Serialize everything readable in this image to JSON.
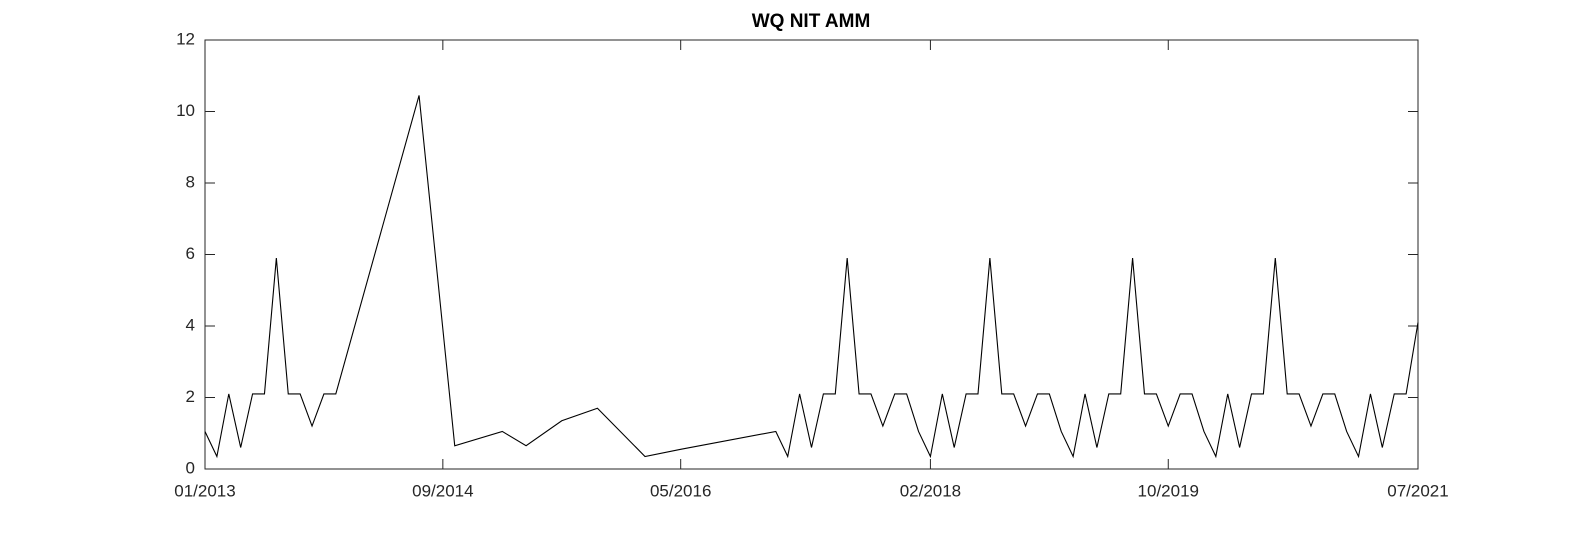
{
  "chart_data": {
    "type": "line",
    "title": "WQ NIT AMM",
    "x": [
      "01/2013",
      "02/2013",
      "03/2013",
      "04/2013",
      "05/2013",
      "06/2013",
      "07/2013",
      "08/2013",
      "09/2013",
      "10/2013",
      "11/2013",
      "12/2013",
      "07/2014",
      "10/2014",
      "02/2015",
      "04/2015",
      "07/2015",
      "10/2015",
      "02/2016",
      "05/2016",
      "01/2017",
      "02/2017",
      "03/2017",
      "04/2017",
      "05/2017",
      "06/2017",
      "07/2017",
      "08/2017",
      "09/2017",
      "10/2017",
      "11/2017",
      "12/2017",
      "01/2018",
      "02/2018",
      "03/2018",
      "04/2018",
      "05/2018",
      "06/2018",
      "07/2018",
      "08/2018",
      "09/2018",
      "10/2018",
      "11/2018",
      "12/2018",
      "01/2019",
      "02/2019",
      "03/2019",
      "04/2019",
      "05/2019",
      "06/2019",
      "07/2019",
      "08/2019",
      "09/2019",
      "10/2019",
      "11/2019",
      "12/2019",
      "01/2020",
      "02/2020",
      "03/2020",
      "04/2020",
      "05/2020",
      "06/2020",
      "07/2020",
      "08/2020",
      "09/2020",
      "10/2020",
      "11/2020",
      "12/2020",
      "01/2021",
      "02/2021",
      "03/2021",
      "04/2021",
      "05/2021",
      "06/2021",
      "07/2021"
    ],
    "series": [
      {
        "color": "#000000",
        "values": [
          1.05,
          0.35,
          2.1,
          0.6,
          2.1,
          2.1,
          5.9,
          2.1,
          2.1,
          1.2,
          2.1,
          2.1,
          10.45,
          0.65,
          1.05,
          0.65,
          1.35,
          1.7,
          0.35,
          0.55,
          1.05,
          0.35,
          2.1,
          0.6,
          2.1,
          2.1,
          5.9,
          2.1,
          2.1,
          1.2,
          2.1,
          2.1,
          1.05,
          0.35,
          2.1,
          0.6,
          2.1,
          2.1,
          5.9,
          2.1,
          2.1,
          1.2,
          2.1,
          2.1,
          1.05,
          0.35,
          2.1,
          0.6,
          2.1,
          2.1,
          5.9,
          2.1,
          2.1,
          1.2,
          2.1,
          2.1,
          1.05,
          0.35,
          2.1,
          0.6,
          2.1,
          2.1,
          5.9,
          2.1,
          2.1,
          1.2,
          2.1,
          2.1,
          1.05,
          0.35,
          2.1,
          0.6,
          2.1,
          2.1,
          4.1
        ]
      }
    ],
    "xlim": [
      "01/2013",
      "07/2021"
    ],
    "xticks": [
      "01/2013",
      "09/2014",
      "05/2016",
      "02/2018",
      "10/2019",
      "07/2021"
    ],
    "ylim": [
      0,
      12
    ],
    "yticks": [
      0,
      2,
      4,
      6,
      8,
      10,
      12
    ],
    "grid": false
  }
}
